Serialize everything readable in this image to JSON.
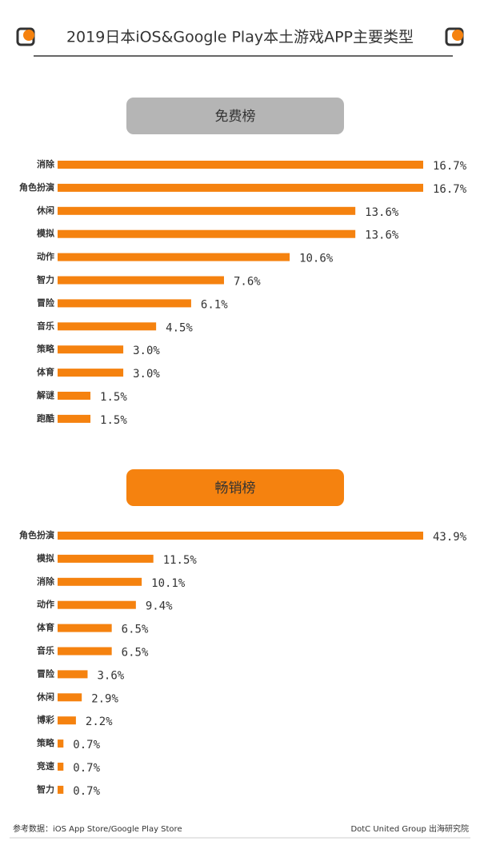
{
  "title": "2019日本iOS&Google Play本土游戏APP主要类型",
  "source": "参考数据：iOS App Store/Google Play Store",
  "credit": "DotC United Group 出海研究院",
  "chart_data": [
    {
      "type": "bar",
      "title": "免费榜",
      "title_color": "#b5b5b5",
      "color": "#f5820f",
      "categories": [
        "消除",
        "角色扮演",
        "休闲",
        "模拟",
        "动作",
        "智力",
        "冒险",
        "音乐",
        "策略",
        "体育",
        "解谜",
        "跑酷"
      ],
      "values": [
        16.7,
        16.7,
        13.6,
        13.6,
        10.6,
        7.6,
        6.1,
        4.5,
        3.0,
        3.0,
        1.5,
        1.5
      ],
      "value_labels": [
        "16.7%",
        "16.7%",
        "13.6%",
        "13.6%",
        "10.6%",
        "7.6%",
        "6.1%",
        "4.5%",
        "3.0%",
        "3.0%",
        "1.5%",
        "1.5%"
      ]
    },
    {
      "type": "bar",
      "title": "畅销榜",
      "title_color": "#f5820f",
      "color": "#f5820f",
      "categories": [
        "角色扮演",
        "模拟",
        "消除",
        "动作",
        "体育",
        "音乐",
        "冒险",
        "休闲",
        "博彩",
        "策略",
        "竞速",
        "智力"
      ],
      "values": [
        43.9,
        11.5,
        10.1,
        9.4,
        6.5,
        6.5,
        3.6,
        2.9,
        2.2,
        0.7,
        0.7,
        0.7
      ],
      "value_labels": [
        "43.9%",
        "11.5%",
        "10.1%",
        "9.4%",
        "6.5%",
        "6.5%",
        "3.6%",
        "2.9%",
        "2.2%",
        "0.7%",
        "0.7%",
        "0.7%"
      ]
    }
  ]
}
